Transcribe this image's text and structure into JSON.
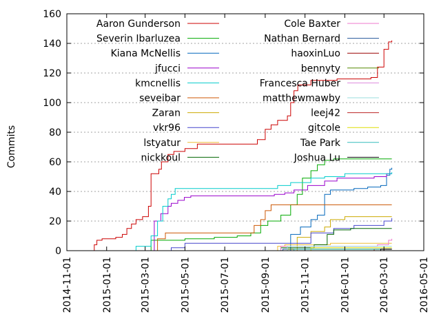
{
  "chart_data": {
    "type": "line",
    "title": "",
    "xlabel": "",
    "ylabel": "Commits",
    "xlim": [
      "2014-11-01",
      "2016-05-01"
    ],
    "ylim": [
      0,
      160
    ],
    "yticks": [
      0,
      20,
      40,
      60,
      80,
      100,
      120,
      140,
      160
    ],
    "xticks": [
      "2014-11-01",
      "2015-01-01",
      "2015-03-01",
      "2015-05-01",
      "2015-07-01",
      "2015-09-01",
      "2015-11-01",
      "2016-01-01",
      "2016-03-01",
      "2016-05-01"
    ],
    "grid": true,
    "legend_position": "top-left, two columns",
    "series": [
      {
        "name": "Aaron Gunderson",
        "color": "#cc0000",
        "step": true,
        "points": [
          [
            "2014-12-10",
            0
          ],
          [
            "2014-12-13",
            4
          ],
          [
            "2014-12-17",
            7
          ],
          [
            "2014-12-25",
            8
          ],
          [
            "2015-01-15",
            9
          ],
          [
            "2015-01-25",
            11
          ],
          [
            "2015-02-01",
            15
          ],
          [
            "2015-02-08",
            18
          ],
          [
            "2015-02-15",
            21
          ],
          [
            "2015-02-25",
            23
          ],
          [
            "2015-03-06",
            30
          ],
          [
            "2015-03-10",
            52
          ],
          [
            "2015-03-22",
            55
          ],
          [
            "2015-03-26",
            60
          ],
          [
            "2015-04-05",
            65
          ],
          [
            "2015-04-14",
            67
          ],
          [
            "2015-05-01",
            69
          ],
          [
            "2015-05-20",
            72
          ],
          [
            "2015-06-20",
            72
          ],
          [
            "2015-08-01",
            72
          ],
          [
            "2015-08-20",
            75
          ],
          [
            "2015-09-01",
            82
          ],
          [
            "2015-09-10",
            85
          ],
          [
            "2015-09-20",
            88
          ],
          [
            "2015-10-05",
            91
          ],
          [
            "2015-10-10",
            100
          ],
          [
            "2015-10-15",
            108
          ],
          [
            "2015-10-21",
            112
          ],
          [
            "2015-11-10",
            115
          ],
          [
            "2015-12-20",
            116
          ],
          [
            "2016-02-10",
            117
          ],
          [
            "2016-02-20",
            124
          ],
          [
            "2016-03-01",
            136
          ],
          [
            "2016-03-08",
            141
          ],
          [
            "2016-03-13",
            142
          ]
        ]
      },
      {
        "name": "Severin Ibarluzea",
        "color": "#00aa00",
        "step": true,
        "points": [
          [
            "2015-03-08",
            0
          ],
          [
            "2015-03-10",
            7
          ],
          [
            "2015-05-01",
            8
          ],
          [
            "2015-06-15",
            9
          ],
          [
            "2015-07-20",
            10
          ],
          [
            "2015-08-10",
            12
          ],
          [
            "2015-08-25",
            17
          ],
          [
            "2015-09-05",
            20
          ],
          [
            "2015-09-25",
            24
          ],
          [
            "2015-10-10",
            31
          ],
          [
            "2015-10-20",
            38
          ],
          [
            "2015-10-28",
            49
          ],
          [
            "2015-11-10",
            54
          ],
          [
            "2015-11-20",
            58
          ],
          [
            "2015-12-01",
            61
          ],
          [
            "2015-12-15",
            62
          ],
          [
            "2016-03-13",
            62
          ]
        ]
      },
      {
        "name": "Kiana McNellis",
        "color": "#0066bb",
        "step": true,
        "points": [
          [
            "2015-10-05",
            0
          ],
          [
            "2015-10-10",
            11
          ],
          [
            "2015-10-25",
            16
          ],
          [
            "2015-11-10",
            21
          ],
          [
            "2015-11-20",
            24
          ],
          [
            "2015-12-01",
            38
          ],
          [
            "2015-12-10",
            41
          ],
          [
            "2016-01-15",
            42
          ],
          [
            "2016-02-05",
            43
          ],
          [
            "2016-02-25",
            44
          ],
          [
            "2016-03-05",
            51
          ],
          [
            "2016-03-10",
            55
          ],
          [
            "2016-03-13",
            56
          ]
        ]
      },
      {
        "name": "jfucci",
        "color": "#9900cc",
        "step": true,
        "points": [
          [
            "2015-03-10",
            0
          ],
          [
            "2015-03-15",
            20
          ],
          [
            "2015-03-25",
            25
          ],
          [
            "2015-04-05",
            30
          ],
          [
            "2015-04-10",
            32
          ],
          [
            "2015-04-20",
            34
          ],
          [
            "2015-04-30",
            36
          ],
          [
            "2015-05-10",
            37
          ],
          [
            "2015-09-01",
            37
          ],
          [
            "2015-09-15",
            38
          ],
          [
            "2015-10-01",
            39
          ],
          [
            "2015-10-15",
            41
          ],
          [
            "2015-11-05",
            44
          ],
          [
            "2015-12-01",
            47
          ],
          [
            "2015-12-20",
            49
          ],
          [
            "2016-02-15",
            50
          ],
          [
            "2016-03-05",
            52
          ],
          [
            "2016-03-13",
            52
          ]
        ]
      },
      {
        "name": "kmcnellis",
        "color": "#00cccc",
        "step": true,
        "points": [
          [
            "2015-02-10",
            0
          ],
          [
            "2015-02-15",
            3
          ],
          [
            "2015-03-10",
            10
          ],
          [
            "2015-03-20",
            20
          ],
          [
            "2015-03-28",
            30
          ],
          [
            "2015-04-05",
            35
          ],
          [
            "2015-04-10",
            38
          ],
          [
            "2015-04-16",
            42
          ],
          [
            "2015-09-01",
            42
          ],
          [
            "2015-09-20",
            44
          ],
          [
            "2015-10-10",
            46
          ],
          [
            "2015-11-10",
            49
          ],
          [
            "2015-12-01",
            50
          ],
          [
            "2016-01-01",
            52
          ],
          [
            "2016-03-13",
            53
          ]
        ]
      },
      {
        "name": "seveibar",
        "color": "#cc5500",
        "step": true,
        "points": [
          [
            "2015-03-08",
            0
          ],
          [
            "2015-03-20",
            8
          ],
          [
            "2015-04-01",
            12
          ],
          [
            "2015-07-20",
            12
          ],
          [
            "2015-08-15",
            17
          ],
          [
            "2015-08-25",
            21
          ],
          [
            "2015-09-01",
            27
          ],
          [
            "2015-09-10",
            31
          ],
          [
            "2016-03-13",
            31
          ]
        ]
      },
      {
        "name": "Zaran",
        "color": "#ccaa00",
        "step": true,
        "points": [
          [
            "2015-10-15",
            0
          ],
          [
            "2015-10-20",
            9
          ],
          [
            "2015-11-10",
            13
          ],
          [
            "2015-12-01",
            16
          ],
          [
            "2015-12-10",
            21
          ],
          [
            "2016-01-01",
            23
          ],
          [
            "2016-03-13",
            23
          ]
        ]
      },
      {
        "name": "vkr96",
        "color": "#4444cc",
        "step": true,
        "points": [
          [
            "2015-03-10",
            0
          ],
          [
            "2015-04-10",
            2
          ],
          [
            "2015-05-01",
            5
          ],
          [
            "2015-09-15",
            5
          ],
          [
            "2015-11-10",
            12
          ],
          [
            "2015-12-15",
            15
          ],
          [
            "2016-01-15",
            17
          ],
          [
            "2016-03-01",
            20
          ],
          [
            "2016-03-13",
            22
          ]
        ]
      },
      {
        "name": "lstyatur",
        "color": "#eebb33",
        "step": true,
        "points": [
          [
            "2015-09-15",
            0
          ],
          [
            "2015-09-20",
            3
          ],
          [
            "2015-10-01",
            4
          ],
          [
            "2015-12-10",
            5
          ],
          [
            "2016-03-13",
            5
          ]
        ]
      },
      {
        "name": "nickkoul",
        "color": "#006600",
        "step": true,
        "points": [
          [
            "2015-09-20",
            0
          ],
          [
            "2015-09-25",
            2
          ],
          [
            "2015-11-15",
            4
          ],
          [
            "2015-12-05",
            11
          ],
          [
            "2015-12-15",
            14
          ],
          [
            "2016-01-10",
            15
          ],
          [
            "2016-03-13",
            15
          ]
        ]
      },
      {
        "name": "Cole Baxter",
        "color": "#ee77cc",
        "step": true,
        "points": [
          [
            "2015-09-20",
            0
          ],
          [
            "2015-09-25",
            3
          ],
          [
            "2016-02-20",
            4
          ],
          [
            "2016-03-08",
            7
          ],
          [
            "2016-03-13",
            8
          ]
        ]
      },
      {
        "name": "Nathan Bernard",
        "color": "#225599",
        "step": true,
        "points": [
          [
            "2015-09-25",
            0
          ],
          [
            "2015-09-28",
            1
          ],
          [
            "2016-03-13",
            1
          ]
        ]
      },
      {
        "name": "haoxinLuo",
        "color": "#990000",
        "step": true,
        "points": [
          [
            "2016-02-10",
            0
          ],
          [
            "2016-02-15",
            1
          ],
          [
            "2016-03-13",
            1
          ]
        ]
      },
      {
        "name": "bennyty",
        "color": "#558800",
        "step": true,
        "points": [
          [
            "2015-10-01",
            0
          ],
          [
            "2015-10-05",
            1
          ],
          [
            "2016-03-13",
            1
          ]
        ]
      },
      {
        "name": "Francesca Huber",
        "color": "#dd88dd",
        "step": true,
        "points": [
          [
            "2016-02-20",
            0
          ],
          [
            "2016-02-25",
            1
          ],
          [
            "2016-03-13",
            1
          ]
        ]
      },
      {
        "name": "matthewmawby",
        "color": "#99dddd",
        "step": true,
        "points": [
          [
            "2015-10-01",
            0
          ],
          [
            "2015-10-05",
            3
          ],
          [
            "2016-03-13",
            3
          ]
        ]
      },
      {
        "name": "leej42",
        "color": "#bb2222",
        "step": true,
        "points": [
          [
            "2016-02-25",
            0
          ],
          [
            "2016-03-01",
            1
          ],
          [
            "2016-03-13",
            1
          ]
        ]
      },
      {
        "name": "gitcole",
        "color": "#dddd00",
        "step": true,
        "points": [
          [
            "2015-11-05",
            0
          ],
          [
            "2015-11-10",
            2
          ],
          [
            "2016-03-13",
            2
          ]
        ]
      },
      {
        "name": "Tae Park",
        "color": "#33bbbb",
        "step": true,
        "points": [
          [
            "2015-10-10",
            0
          ],
          [
            "2015-10-15",
            1
          ],
          [
            "2016-03-13",
            1
          ]
        ]
      },
      {
        "name": "Joshua Lu",
        "color": "#000000",
        "step": true,
        "points": [
          [
            "2016-02-20",
            0
          ],
          [
            "2016-02-25",
            1
          ],
          [
            "2016-03-13",
            1
          ]
        ]
      }
    ]
  }
}
